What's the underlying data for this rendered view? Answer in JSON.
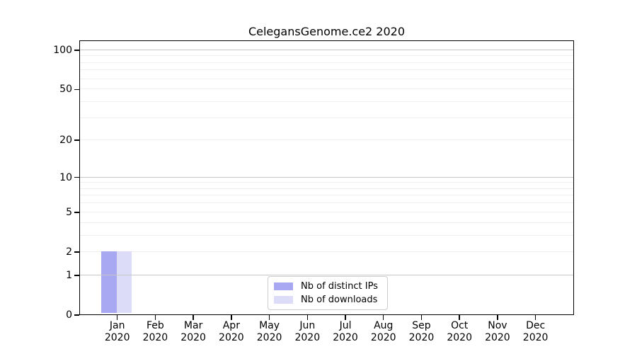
{
  "chart_data": {
    "type": "bar",
    "title": "CelegansGenome.ce2 2020",
    "x": {
      "months": [
        "Jan",
        "Feb",
        "Mar",
        "Apr",
        "May",
        "Jun",
        "Jul",
        "Aug",
        "Sep",
        "Oct",
        "Nov",
        "Dec"
      ],
      "years": [
        "2020",
        "2020",
        "2020",
        "2020",
        "2020",
        "2020",
        "2020",
        "2020",
        "2020",
        "2020",
        "2020",
        "2020"
      ]
    },
    "series": [
      {
        "name": "Nb of distinct IPs",
        "color": "#a8a8f2",
        "values": [
          2,
          0,
          0,
          0,
          0,
          0,
          0,
          0,
          0,
          0,
          0,
          0
        ]
      },
      {
        "name": "Nb of downloads",
        "color": "#dcdcf8",
        "values": [
          2,
          0,
          0,
          0,
          0,
          0,
          0,
          0,
          0,
          0,
          0,
          0
        ]
      }
    ],
    "y_axis": {
      "scale": "log1p",
      "tick_labels": [
        "100",
        "50",
        "20",
        "10",
        "5",
        "2",
        "1",
        "0"
      ],
      "tick_values": [
        100,
        50,
        20,
        10,
        5,
        2,
        1,
        0
      ],
      "range": [
        0,
        120
      ]
    },
    "gridlines": {
      "major_values": [
        1,
        10,
        100
      ],
      "minor_values": [
        2,
        3,
        4,
        5,
        6,
        7,
        8,
        9,
        20,
        30,
        40,
        50,
        60,
        70,
        80,
        90
      ],
      "major_color": "#c6c6c6",
      "minor_color": "#efefef"
    },
    "legend": {
      "position": "lower-center-inside"
    },
    "frame_color": "#000000",
    "background_color": "#ffffff"
  }
}
